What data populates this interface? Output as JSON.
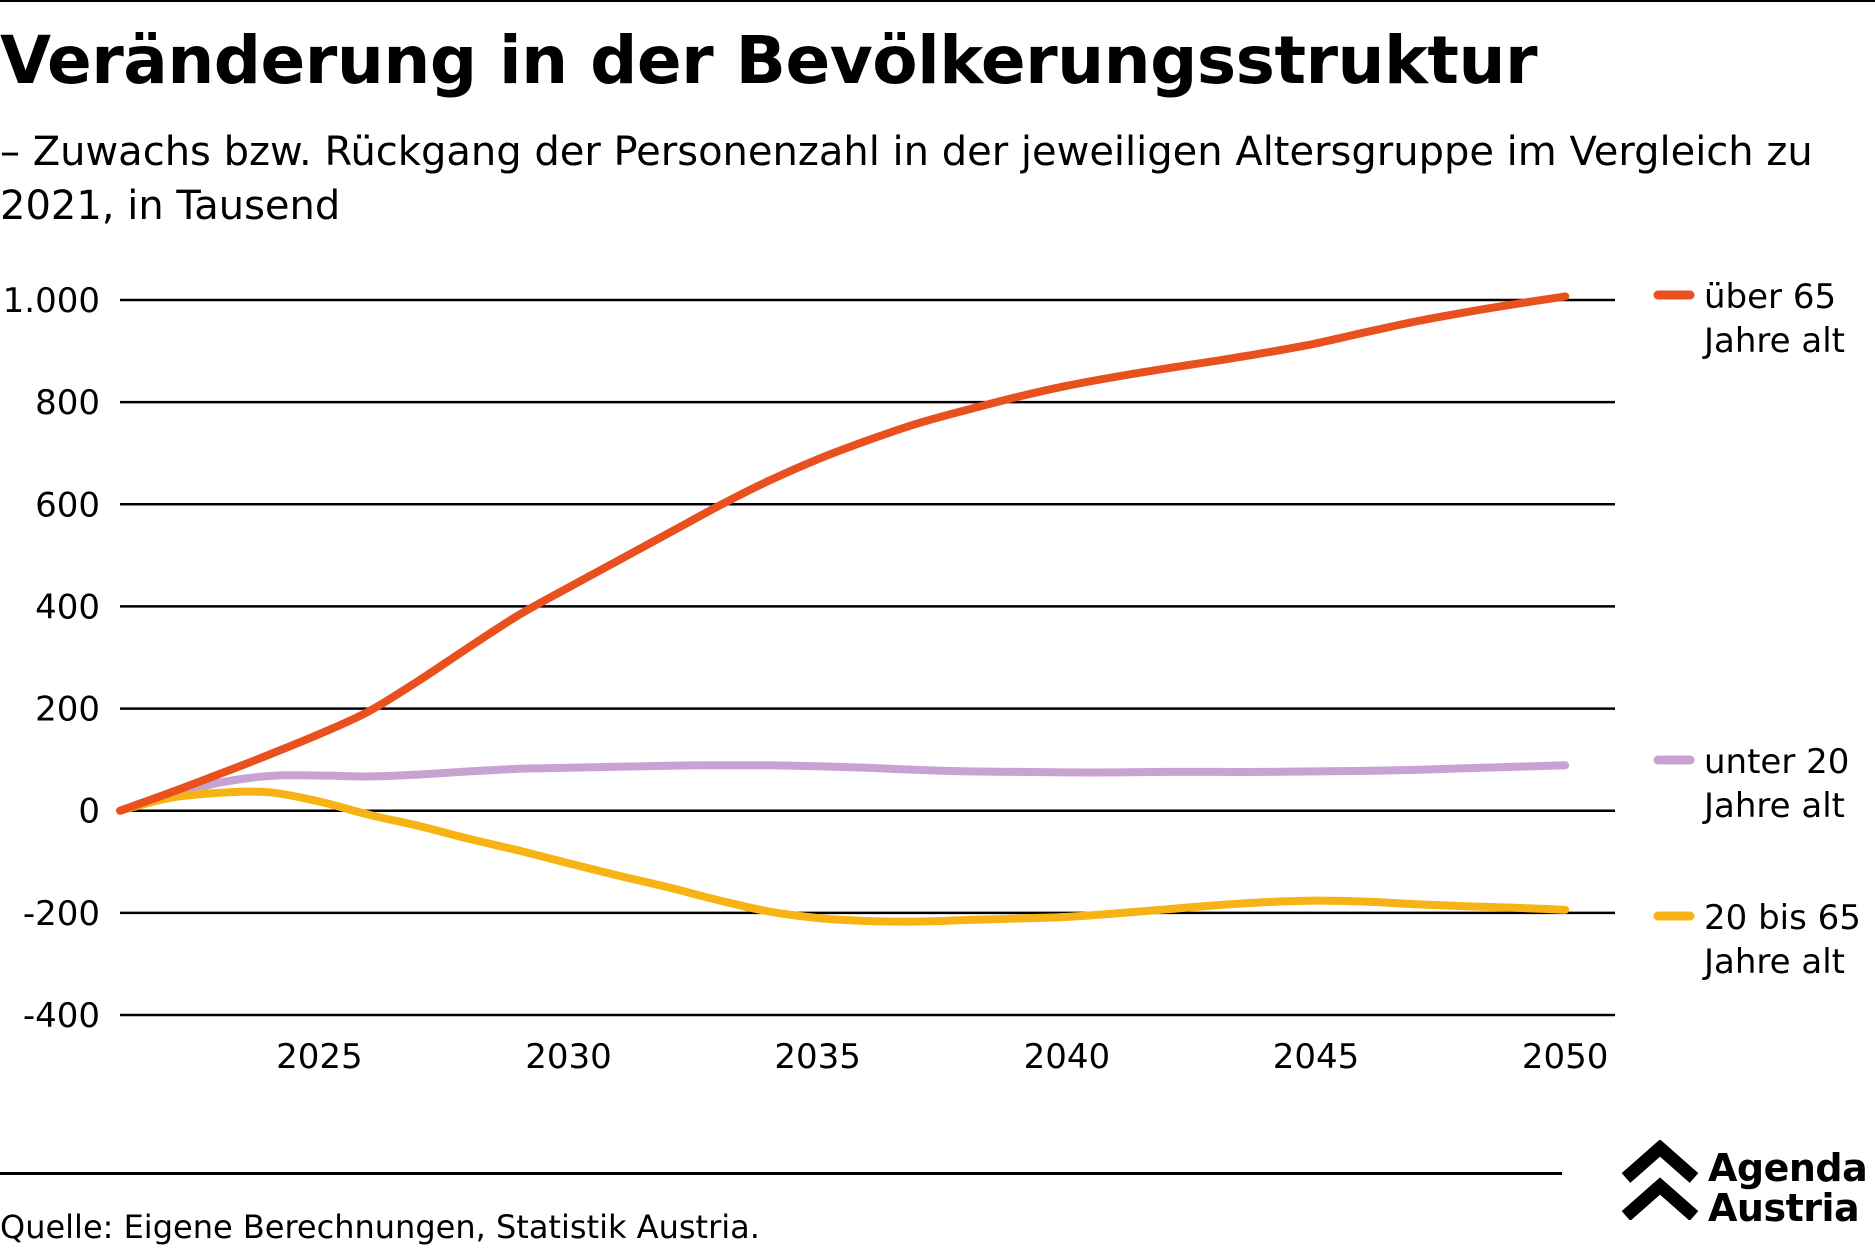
{
  "header": {
    "title": "Veränderung in der Bevölkerungsstruktur",
    "subtitle": "– Zuwachs bzw. Rückgang der Personenzahl in der jeweiligen Altersgruppe im Vergleich zu 2021, in Tausend"
  },
  "footer": {
    "source": "Quelle: Eigene Berechnungen, Statistik Austria.",
    "logo_line1": "Agenda",
    "logo_line2": "Austria"
  },
  "chart_data": {
    "type": "line",
    "title": "Veränderung in der Bevölkerungsstruktur",
    "subtitle": "– Zuwachs bzw. Rückgang der Personenzahl in der jeweiligen Altersgruppe im Vergleich zu 2021, in Tausend",
    "x": [
      2021,
      2022,
      2023,
      2024,
      2025,
      2026,
      2027,
      2028,
      2029,
      2030,
      2031,
      2032,
      2033,
      2034,
      2035,
      2036,
      2037,
      2038,
      2039,
      2040,
      2041,
      2042,
      2043,
      2044,
      2045,
      2046,
      2047,
      2048,
      2049,
      2050
    ],
    "xlim": [
      2021,
      2051
    ],
    "xticks": [
      2025,
      2030,
      2035,
      2040,
      2045,
      2050
    ],
    "ylim": [
      -400,
      1000
    ],
    "yticks": [
      1000,
      800,
      600,
      400,
      200,
      0,
      -200,
      -400
    ],
    "ytick_labels": [
      "1.000",
      "800",
      "600",
      "400",
      "200",
      "0",
      "-200",
      "-400"
    ],
    "grid": "horizontal",
    "legend_position": "right, at line ends",
    "series": [
      {
        "name": "über 65 Jahre alt",
        "label_lines": [
          "über 65",
          "Jahre alt"
        ],
        "color": "#e8501e",
        "values": [
          0,
          35,
          72,
          110,
          150,
          195,
          255,
          320,
          383,
          437,
          490,
          543,
          596,
          645,
          688,
          725,
          758,
          785,
          810,
          832,
          850,
          866,
          881,
          897,
          915,
          937,
          958,
          976,
          992,
          1007
        ]
      },
      {
        "name": "unter 20 Jahre alt",
        "label_lines": [
          "unter 20",
          "Jahre alt"
        ],
        "color": "#c7a2d3",
        "values": [
          0,
          30,
          55,
          68,
          69,
          67,
          71,
          77,
          82,
          84,
          86,
          88,
          89,
          89,
          87,
          84,
          80,
          77,
          76,
          75,
          75,
          76,
          76,
          76,
          77,
          78,
          80,
          83,
          86,
          89
        ]
      },
      {
        "name": "20 bis 65 Jahre alt",
        "label_lines": [
          "20 bis 65",
          "Jahre alt"
        ],
        "color": "#f7b314",
        "values": [
          0,
          25,
          35,
          36,
          18,
          -8,
          -30,
          -55,
          -78,
          -103,
          -127,
          -150,
          -175,
          -197,
          -210,
          -216,
          -217,
          -214,
          -211,
          -208,
          -201,
          -193,
          -185,
          -179,
          -176,
          -178,
          -183,
          -187,
          -190,
          -194
        ]
      }
    ]
  }
}
